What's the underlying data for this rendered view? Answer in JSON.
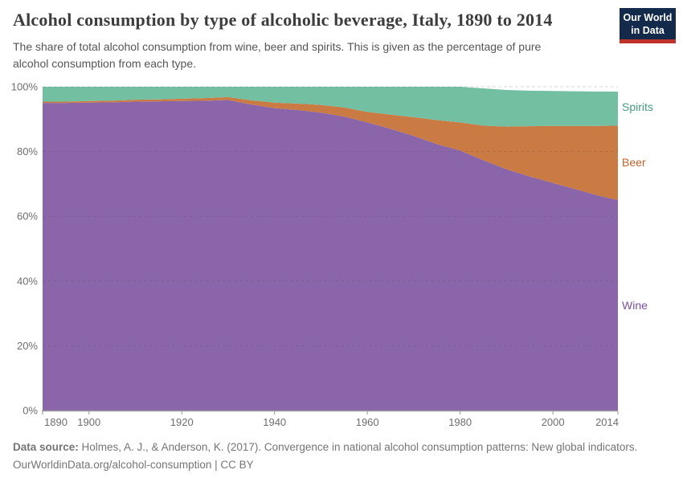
{
  "header": {
    "title": "Alcohol consumption by type of alcoholic beverage, Italy, 1890 to 2014",
    "subtitle_line1": "The share of total alcohol consumption from wine, beer and spirits. This is given as the percentage of pure",
    "subtitle_line2": "alcohol consumption from each type."
  },
  "logo": {
    "line1": "Our World",
    "line2": "in Data",
    "bg_color": "#132a4a",
    "accent_color": "#c0332b",
    "text_color": "#ffffff"
  },
  "chart_data": {
    "type": "area",
    "stacked": true,
    "title": "Alcohol consumption by type of alcoholic beverage, Italy, 1890 to 2014",
    "xlabel": "",
    "ylabel": "",
    "xlim": [
      1890,
      2014
    ],
    "ylim": [
      0,
      100
    ],
    "x_ticks": [
      1890,
      1900,
      1920,
      1940,
      1960,
      1980,
      2000,
      2014
    ],
    "y_ticks": [
      0,
      20,
      40,
      60,
      80,
      100
    ],
    "y_tick_suffix": "%",
    "grid": "dashed",
    "legend_position": "right-inline",
    "x": [
      1890,
      1895,
      1900,
      1905,
      1910,
      1915,
      1920,
      1925,
      1930,
      1935,
      1940,
      1945,
      1950,
      1955,
      1960,
      1965,
      1970,
      1975,
      1980,
      1985,
      1990,
      1995,
      2000,
      2005,
      2010,
      2014
    ],
    "series": [
      {
        "name": "Wine",
        "color": "#8a65a9",
        "label_color": "#7a4fa3",
        "values": [
          95.0,
          95.0,
          95.1,
          95.2,
          95.4,
          95.5,
          95.6,
          95.7,
          95.9,
          94.5,
          93.4,
          92.8,
          92.0,
          90.8,
          89.0,
          87.0,
          84.8,
          82.3,
          80.3,
          77.3,
          74.5,
          72.3,
          70.3,
          68.3,
          66.3,
          65.0
        ]
      },
      {
        "name": "Beer",
        "color": "#ca7a43",
        "label_color": "#bd622e",
        "values": [
          0.4,
          0.4,
          0.5,
          0.5,
          0.6,
          0.6,
          0.7,
          0.8,
          0.9,
          1.3,
          1.7,
          2.0,
          2.4,
          2.8,
          3.2,
          4.4,
          5.8,
          7.4,
          8.7,
          10.7,
          13.2,
          15.5,
          17.6,
          19.6,
          21.6,
          23.0
        ]
      },
      {
        "name": "Spirits",
        "color": "#73bfa2",
        "label_color": "#479c80",
        "values": [
          4.6,
          4.6,
          4.4,
          4.3,
          4.0,
          3.9,
          3.7,
          3.5,
          3.2,
          4.2,
          4.9,
          5.2,
          5.6,
          6.4,
          7.8,
          8.6,
          9.4,
          10.3,
          11.0,
          11.5,
          11.3,
          11.0,
          10.8,
          10.7,
          10.6,
          10.5
        ]
      }
    ],
    "axis_color": "#9a9a9a",
    "tick_label_color": "#6e6e6e",
    "grid_color_rgba": "rgba(85,85,85,0.22)"
  },
  "footer": {
    "datasource_label": "Data source:",
    "datasource_text": " Holmes, A. J., & Anderson, K. (2017). Convergence in national alcohol consumption patterns: New global indicators.",
    "license_line": "OurWorldinData.org/alcohol-consumption | CC BY"
  }
}
